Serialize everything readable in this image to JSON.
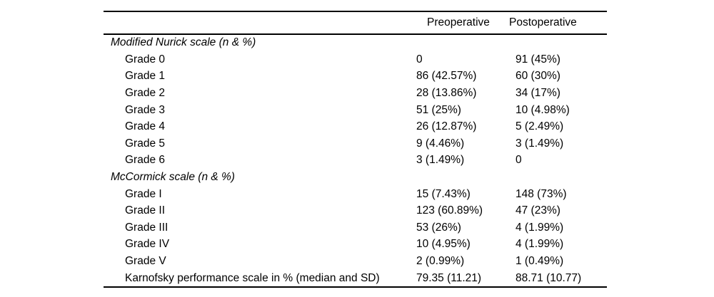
{
  "table": {
    "background": "#ffffff",
    "text_color": "#000000",
    "rule_color": "#000000",
    "columns": [
      "Preoperative",
      "Postoperative"
    ],
    "rows": [
      {
        "type": "section",
        "label": "Modified Nurick scale (n & %)",
        "pre": "",
        "post": ""
      },
      {
        "type": "item",
        "label": "Grade 0",
        "pre": "0",
        "post": "91 (45%)"
      },
      {
        "type": "item",
        "label": "Grade 1",
        "pre": "86 (42.57%)",
        "post": "60 (30%)"
      },
      {
        "type": "item",
        "label": "Grade 2",
        "pre": "28 (13.86%)",
        "post": "34 (17%)"
      },
      {
        "type": "item",
        "label": "Grade 3",
        "pre": "51 (25%)",
        "post": "10 (4.98%)"
      },
      {
        "type": "item",
        "label": "Grade 4",
        "pre": "26 (12.87%)",
        "post": "5 (2.49%)"
      },
      {
        "type": "item",
        "label": "Grade 5",
        "pre": "9 (4.46%)",
        "post": "3 (1.49%)"
      },
      {
        "type": "item",
        "label": "Grade 6",
        "pre": "3 (1.49%)",
        "post": "0"
      },
      {
        "type": "section",
        "label": "McCormick scale (n & %)",
        "pre": "",
        "post": ""
      },
      {
        "type": "item",
        "label": "Grade I",
        "pre": "15 (7.43%)",
        "post": "148 (73%)"
      },
      {
        "type": "item",
        "label": "Grade II",
        "pre": "123 (60.89%)",
        "post": "47 (23%)"
      },
      {
        "type": "item",
        "label": "Grade III",
        "pre": "53 (26%)",
        "post": "4 (1.99%)"
      },
      {
        "type": "item",
        "label": "Grade IV",
        "pre": "10 (4.95%)",
        "post": "4 (1.99%)"
      },
      {
        "type": "item",
        "label": "Grade V",
        "pre": "2 (0.99%)",
        "post": "1 (0.49%)"
      },
      {
        "type": "item",
        "label": "Karnofsky performance scale in % (median and SD)",
        "pre": "79.35 (11.21)",
        "post": "88.71 (10.77)"
      }
    ]
  }
}
